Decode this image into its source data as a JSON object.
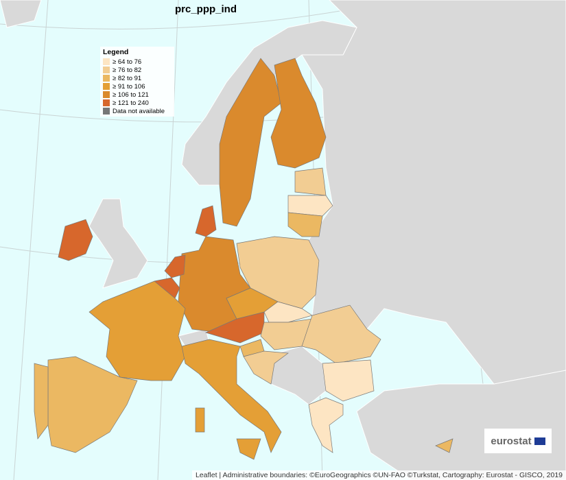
{
  "title": "prc_ppp_ind",
  "legend": {
    "title": "Legend",
    "items": [
      {
        "label": "≥ 64 to 76",
        "color": "#fde5c3"
      },
      {
        "label": "≥ 76 to 82",
        "color": "#f2cd93"
      },
      {
        "label": "≥ 82 to 91",
        "color": "#ebb862"
      },
      {
        "label": "≥ 91 to 106",
        "color": "#e49f36"
      },
      {
        "label": "≥ 106 to 121",
        "color": "#da8a2d"
      },
      {
        "label": "≥ 121 to 240",
        "color": "#d7672c"
      },
      {
        "label": "Data not available",
        "color": "#777777"
      }
    ]
  },
  "logo": "eurostat",
  "attribution": "Leaflet | Administrative boundaries: ©EuroGeographics ©UN-FAO ©Turkstat, Cartography: Eurostat - GISCO, 2019"
}
